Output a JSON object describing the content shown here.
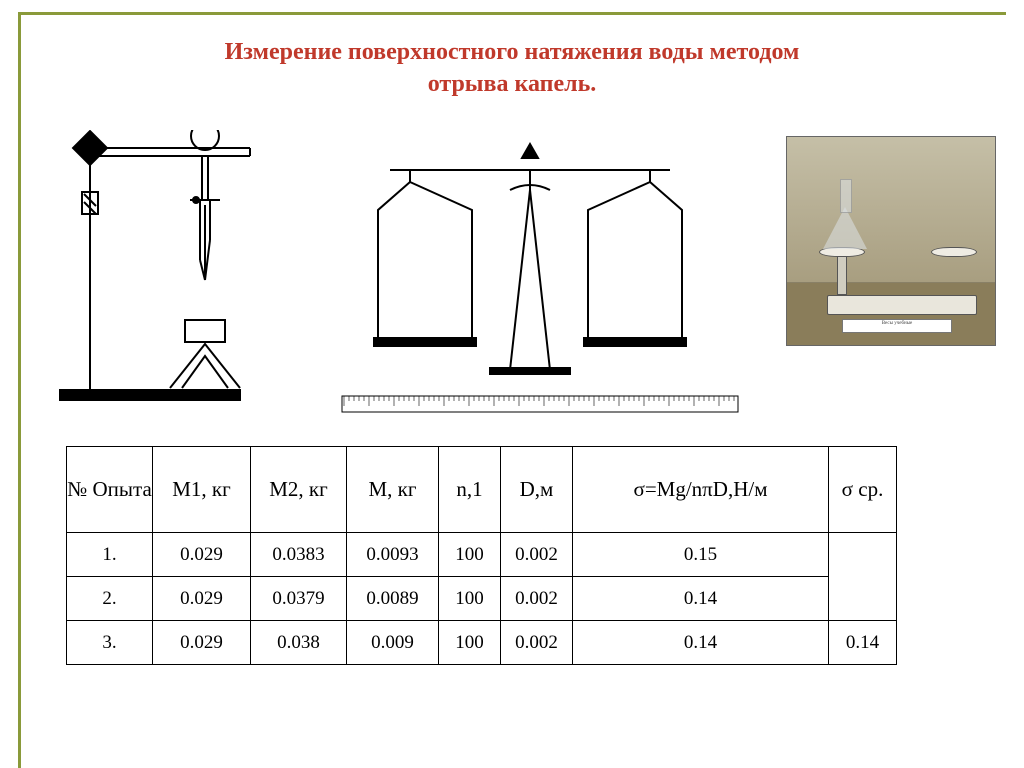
{
  "title_line1": "Измерение поверхностного натяжения воды методом",
  "title_line2": "отрыва капель.",
  "photo_label": "Весы учебные",
  "table": {
    "headers": {
      "n": "№ Опыта",
      "m1": "М1, кг",
      "m2": "М2, кг",
      "m": "М, кг",
      "n1": "n,1",
      "d": "D,м",
      "sigma": "σ=Mg/nπD,Н/м",
      "sr": "σ ср."
    },
    "rows": [
      {
        "n": "1.",
        "m1": "0.029",
        "m2": "0.0383",
        "m": "0.0093",
        "n1": "100",
        "d": "0.002",
        "sigma": "0.15"
      },
      {
        "n": "2.",
        "m1": "0.029",
        "m2": "0.0379",
        "m": "0.0089",
        "n1": "100",
        "d": "0.002",
        "sigma": "0.14"
      },
      {
        "n": "3.",
        "m1": "0.029",
        "m2": "0.038",
        "m": "0.009",
        "n1": "100",
        "d": "0.002",
        "sigma": "0.14"
      }
    ],
    "sigma_sr": "0.14"
  },
  "colors": {
    "frame": "#8a9a3a",
    "title": "#c0392b",
    "line": "#000000",
    "table_border": "#000000",
    "photo_bg": "#b0a68a"
  }
}
